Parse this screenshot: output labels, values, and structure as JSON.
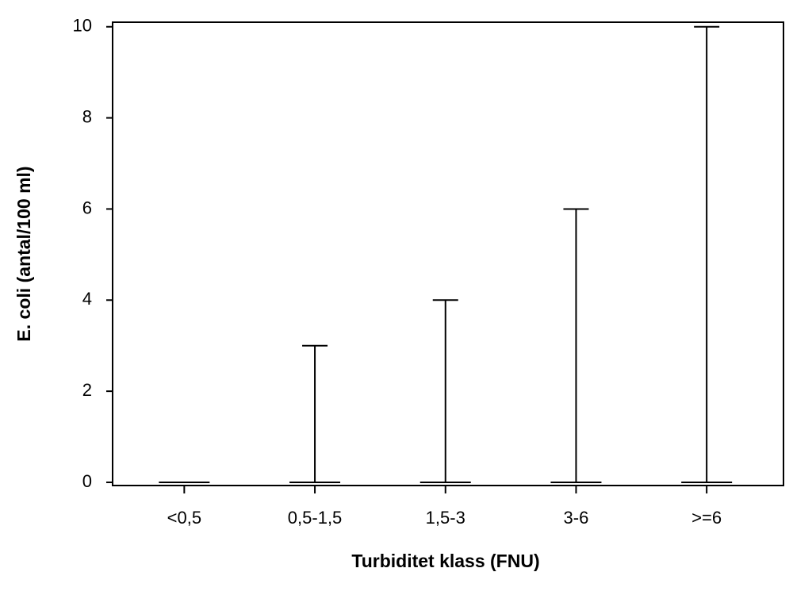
{
  "chart_data": {
    "type": "range",
    "x_label": "Turbiditet klass (FNU)",
    "y_label": "E. coli (antal/100 ml)",
    "categories": [
      "<0,5",
      "0,5-1,5",
      "1,5-3",
      "3-6",
      ">=6"
    ],
    "low": [
      0,
      0,
      0,
      0,
      0
    ],
    "high": [
      0,
      3,
      4,
      6,
      10
    ],
    "color": "#000000",
    "ylim": [
      -0.07,
      10.1
    ],
    "yticks": [
      0,
      2,
      4,
      6,
      8,
      10
    ]
  }
}
